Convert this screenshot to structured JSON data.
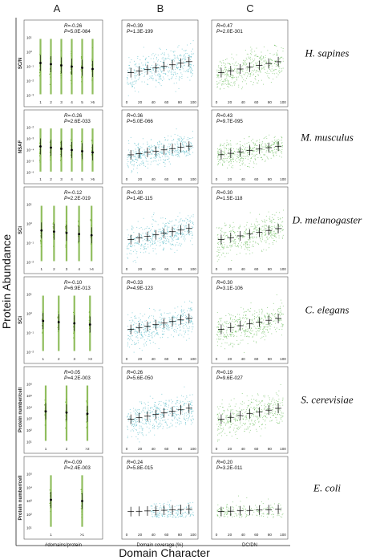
{
  "column_headers": [
    "A",
    "B",
    "C"
  ],
  "y_axis_title": "Protein Abundance",
  "x_axis_title": "Domain Character",
  "colors": {
    "col_a_points": "#7cb342",
    "col_b_points": "#4fb8c6",
    "col_c_points": "#66bb55",
    "summary": "#000000"
  },
  "species": [
    "H. sapines",
    "M. musculus",
    "D. melanogaster",
    "C. elegans",
    "S. cerevisiae",
    "E. coli"
  ],
  "panel_ylabels": [
    "SC/N",
    "NSAF",
    "SCi",
    "SCi",
    "Protein number/cell",
    "Protein number/cell"
  ],
  "panel_x_axis_labels": [
    "#domains/protein",
    "Domain coverage (%)",
    "DC/DN"
  ],
  "chart_data": {
    "type": "scatter",
    "rows": [
      {
        "species": "H. sapines",
        "panels": [
          {
            "column": "A",
            "R": "-0.26",
            "P": "5.0E-084",
            "x_ticks": [
              "1",
              "2",
              "3",
              "4",
              "5",
              ">5"
            ],
            "y_ticks": [
              "10¹",
              "10⁰",
              "10⁻¹",
              "10⁻²",
              "10⁻³"
            ]
          },
          {
            "column": "B",
            "R": "0.39",
            "P": "1.3E-199",
            "x_ticks": [
              "0",
              "20",
              "40",
              "60",
              "80",
              "100"
            ]
          },
          {
            "column": "C",
            "R": "0.47",
            "P": "2.0E-301",
            "x_ticks": [
              "0",
              "20",
              "40",
              "60",
              "80",
              "100"
            ]
          }
        ]
      },
      {
        "species": "M. musculus",
        "panels": [
          {
            "column": "A",
            "R": "-0.26",
            "P": "2.6E-033",
            "x_ticks": [
              "1",
              "2",
              "3",
              "4",
              "5",
              ">5"
            ],
            "y_ticks": [
              "10⁻²",
              "10⁻³",
              "10⁻⁴",
              "10⁻⁵",
              "10⁻⁶"
            ]
          },
          {
            "column": "B",
            "R": "0.36",
            "P": "5.0E-066",
            "x_ticks": [
              "0",
              "20",
              "40",
              "60",
              "80",
              "100"
            ]
          },
          {
            "column": "C",
            "R": "0.43",
            "P": "9.7E-095",
            "x_ticks": [
              "0",
              "20",
              "40",
              "60",
              "80",
              "100"
            ]
          }
        ]
      },
      {
        "species": "D. melanogaster",
        "panels": [
          {
            "column": "A",
            "R": "-0.12",
            "P": "2.2E-019",
            "x_ticks": [
              "1",
              "2",
              "3",
              "4",
              ">4"
            ],
            "y_ticks": [
              "10¹",
              "10⁰",
              "10⁻¹",
              "10⁻²"
            ]
          },
          {
            "column": "B",
            "R": "0.30",
            "P": "1.4E-115",
            "x_ticks": [
              "0",
              "20",
              "40",
              "60",
              "80",
              "100"
            ]
          },
          {
            "column": "C",
            "R": "0.30",
            "P": "1.5E-118",
            "x_ticks": [
              "0",
              "20",
              "40",
              "60",
              "80",
              "100"
            ]
          }
        ]
      },
      {
        "species": "C. elegans",
        "panels": [
          {
            "column": "A",
            "R": "-0.10",
            "P": "6.9E-013",
            "x_ticks": [
              "1",
              "2",
              "3",
              ">3"
            ],
            "y_ticks": [
              "10¹",
              "10⁰",
              "10⁻¹",
              "10⁻²"
            ]
          },
          {
            "column": "B",
            "R": "0.33",
            "P": "4.9E-123",
            "x_ticks": [
              "0",
              "20",
              "40",
              "60",
              "80",
              "100"
            ]
          },
          {
            "column": "C",
            "R": "0.30",
            "P": "3.1E-106",
            "x_ticks": [
              "0",
              "20",
              "40",
              "60",
              "80",
              "100"
            ]
          }
        ]
      },
      {
        "species": "S. cerevisiae",
        "panels": [
          {
            "column": "A",
            "R": "0.05",
            "P": "4.2E-003",
            "x_ticks": [
              "1",
              "2",
              ">2"
            ],
            "y_ticks": [
              "10⁶",
              "10⁵",
              "10⁴",
              "10³",
              "10²",
              "10¹"
            ]
          },
          {
            "column": "B",
            "R": "0.26",
            "P": "5.6E-050",
            "x_ticks": [
              "0",
              "20",
              "40",
              "60",
              "80",
              "100"
            ]
          },
          {
            "column": "C",
            "R": "0.19",
            "P": "9.6E-027",
            "x_ticks": [
              "0",
              "20",
              "40",
              "60",
              "80",
              "100"
            ]
          }
        ]
      },
      {
        "species": "E. coli",
        "panels": [
          {
            "column": "A",
            "R": "-0.09",
            "P": "2.4E-003",
            "x_ticks": [
              "1",
              ">1"
            ],
            "y_ticks": [
              "10⁵",
              "10⁴",
              "10³",
              "10²",
              "10¹"
            ]
          },
          {
            "column": "B",
            "R": "0.24",
            "P": "5.8E-015",
            "x_ticks": [
              "0",
              "20",
              "40",
              "60",
              "80",
              "100"
            ]
          },
          {
            "column": "C",
            "R": "0.20",
            "P": "3.2E-011",
            "x_ticks": [
              "0",
              "20",
              "40",
              "60",
              "80",
              "100"
            ]
          }
        ]
      }
    ]
  }
}
